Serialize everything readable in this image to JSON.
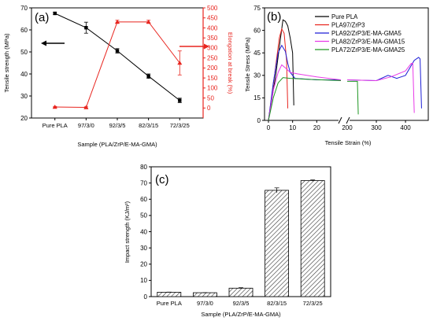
{
  "panels": {
    "a": {
      "tag": "(a)"
    },
    "b": {
      "tag": "(b)"
    },
    "c": {
      "tag": "(c)"
    }
  },
  "chart_data": [
    {
      "id": "a",
      "type": "line",
      "xlabel": "Sample (PLA/ZrP/E-MA-GMA)",
      "categories": [
        "Pure PLA",
        "97/3/0",
        "92/3/5",
        "82/3/15",
        "72/3/25"
      ],
      "ylabel": "Tensile strength (MPa)",
      "ylim": [
        20,
        70
      ],
      "yticks": [
        20,
        30,
        40,
        50,
        60,
        70
      ],
      "y2label": "Elongation at break (%)",
      "y2lim": [
        -50,
        500
      ],
      "y2ticks": [
        0,
        50,
        100,
        150,
        200,
        250,
        300,
        350,
        400,
        450,
        500
      ],
      "series": [
        {
          "axis": "left",
          "color": "#000000",
          "marker": "square",
          "values": [
            67.5,
            61,
            50.5,
            39,
            28
          ],
          "errors": [
            0.5,
            2.5,
            1,
            1,
            1
          ]
        },
        {
          "axis": "right",
          "color": "#e8251f",
          "marker": "triangle",
          "values": [
            5,
            3,
            430,
            430,
            225
          ],
          "errors": [
            3,
            3,
            8,
            8,
            60
          ]
        }
      ]
    },
    {
      "id": "b",
      "type": "line",
      "xlabel": "Tensile Strain (%)",
      "ylabel": "Tensile Stress (MPa)",
      "ylim": [
        0,
        75
      ],
      "yticks": [
        0,
        15,
        30,
        45,
        60,
        75
      ],
      "x_break": {
        "first": [
          0,
          30
        ],
        "second": [
          200,
          470
        ]
      },
      "xticks": [
        0,
        10,
        20,
        200,
        300,
        400
      ],
      "grid": false,
      "legend_position": "top-right",
      "series": [
        {
          "name": "Pure PLA",
          "color": "#000000",
          "points": [
            [
              0,
              0
            ],
            [
              3,
              30
            ],
            [
              5,
              55
            ],
            [
              6,
              67
            ],
            [
              7,
              66
            ],
            [
              8,
              63
            ],
            [
              9,
              55
            ],
            [
              10,
              45
            ],
            [
              10.5,
              10
            ]
          ]
        },
        {
          "name": "PLA97/ZrP3",
          "color": "#e8251f",
          "points": [
            [
              0,
              0
            ],
            [
              2.5,
              30
            ],
            [
              4.5,
              55
            ],
            [
              5.5,
              61
            ],
            [
              6.5,
              58
            ],
            [
              7.5,
              40
            ],
            [
              8,
              8
            ]
          ]
        },
        {
          "name": "PLA92/ZrP3/E-MA-GMA5",
          "color": "#1d1fd6",
          "points": [
            [
              0,
              0
            ],
            [
              2,
              25
            ],
            [
              4,
              45
            ],
            [
              5.5,
              50
            ],
            [
              7,
              46
            ],
            [
              8,
              38
            ],
            [
              9,
              32
            ],
            [
              11,
              28
            ],
            [
              20,
              27
            ],
            [
              30,
              27
            ],
            [
              200,
              27
            ],
            [
              300,
              26.5
            ],
            [
              340,
              30
            ],
            [
              370,
              28
            ],
            [
              400,
              30
            ],
            [
              430,
              40
            ],
            [
              445,
              42
            ],
            [
              450,
              41
            ],
            [
              455,
              8
            ]
          ]
        },
        {
          "name": "PLA82/ZrP3/E-MA-GMA15",
          "color": "#e83ae8",
          "points": [
            [
              0,
              0
            ],
            [
              2,
              20
            ],
            [
              4,
              32
            ],
            [
              5.5,
              37
            ],
            [
              7,
              35
            ],
            [
              9,
              32
            ],
            [
              12,
              31
            ],
            [
              20,
              29
            ],
            [
              30,
              27
            ],
            [
              200,
              27
            ],
            [
              300,
              26.5
            ],
            [
              350,
              29
            ],
            [
              400,
              33
            ],
            [
              420,
              38
            ],
            [
              425,
              38
            ],
            [
              430,
              5
            ]
          ]
        },
        {
          "name": "PLA72/ZrP3/E-MA-GMA25",
          "color": "#1e9622",
          "points": [
            [
              0,
              0
            ],
            [
              2,
              15
            ],
            [
              4,
              25
            ],
            [
              6,
              28.5
            ],
            [
              9,
              28
            ],
            [
              15,
              27.5
            ],
            [
              30,
              26.5
            ],
            [
              200,
              26
            ],
            [
              235,
              26
            ],
            [
              238,
              4
            ]
          ]
        }
      ]
    },
    {
      "id": "c",
      "type": "bar",
      "xlabel": "Sample (PLA/ZrP/E-MA-GMA)",
      "ylabel": "Impact strength (KJ/m²)",
      "ylim": [
        0,
        80
      ],
      "yticks": [
        0,
        10,
        20,
        30,
        40,
        50,
        60,
        70,
        80
      ],
      "categories": [
        "Pure PLA",
        "97/3/0",
        "92/3/5",
        "82/3/15",
        "72/3/25"
      ],
      "values": [
        2.7,
        2.4,
        5.2,
        65.5,
        71.5
      ],
      "errors": [
        0.1,
        0.1,
        0.3,
        1.5,
        0.4
      ],
      "bar_fill": "hatched"
    }
  ],
  "arrows": {
    "colors": {
      "black": "#000000",
      "red": "#e8251f"
    }
  }
}
